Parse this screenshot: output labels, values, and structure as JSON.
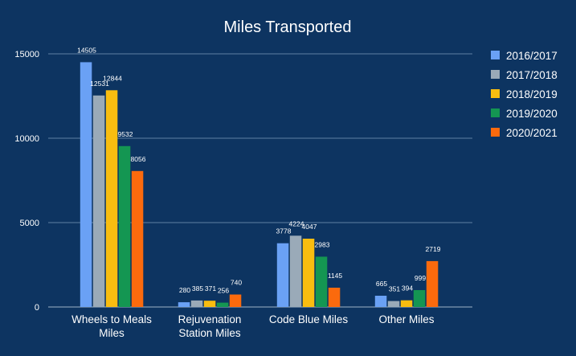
{
  "chart_data": {
    "type": "bar",
    "title": "Miles Transported",
    "xlabel": "",
    "ylabel": "",
    "ylim": [
      0,
      15000
    ],
    "yticks": [
      0,
      5000,
      10000,
      15000
    ],
    "grid": true,
    "legend_position": "right",
    "categories": [
      [
        "Wheels to Meals",
        "Miles"
      ],
      [
        "Rejuvenation",
        "Station Miles"
      ],
      [
        "Code Blue Miles"
      ],
      [
        "Other Miles"
      ]
    ],
    "series": [
      {
        "name": "2016/2017",
        "color": "#6aa1f5",
        "values": [
          14505,
          280,
          3778,
          665
        ]
      },
      {
        "name": "2017/2018",
        "color": "#9aaab8",
        "values": [
          12531,
          385,
          4224,
          351
        ]
      },
      {
        "name": "2018/2019",
        "color": "#f9bd10",
        "values": [
          12844,
          371,
          4047,
          394
        ]
      },
      {
        "name": "2019/2020",
        "color": "#149652",
        "values": [
          9532,
          256,
          2983,
          999
        ]
      },
      {
        "name": "2020/2021",
        "color": "#fb6a0d",
        "values": [
          8056,
          740,
          1145,
          2719
        ]
      }
    ]
  }
}
